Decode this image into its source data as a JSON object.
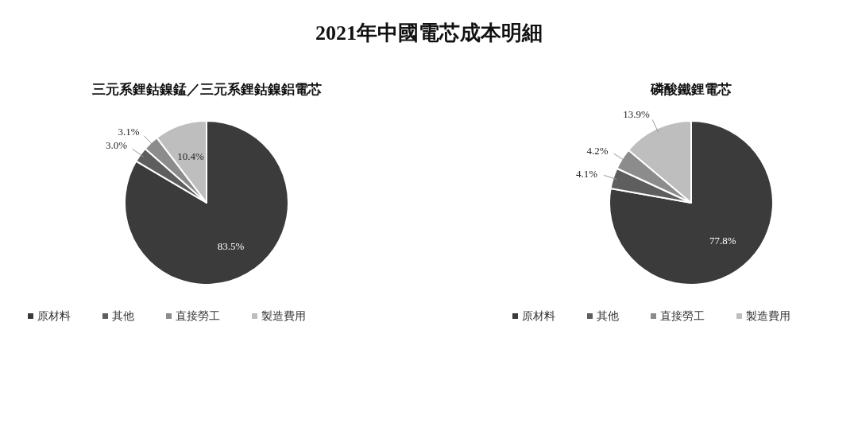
{
  "chart_data": [
    {
      "type": "pie",
      "title": "三元系鋰鈷鎳錳／三元系鋰鈷鎳鋁電芯",
      "annotations": [
        "2021年中國電芯成本明細"
      ],
      "categories": [
        "原材料",
        "其他",
        "直接勞工",
        "製造費用"
      ],
      "values": [
        83.5,
        3.0,
        3.1,
        10.4
      ],
      "value_labels": [
        "83.5%",
        "3.0%",
        "3.1%",
        "10.4%"
      ],
      "colors": [
        "#3b3b3b",
        "#5e5e5e",
        "#8c8c8c",
        "#bebebe"
      ],
      "legend": "bottom"
    },
    {
      "type": "pie",
      "title": "磷酸鐵鋰電芯",
      "categories": [
        "原材料",
        "其他",
        "直接勞工",
        "製造費用"
      ],
      "values": [
        77.8,
        4.1,
        4.2,
        13.9
      ],
      "value_labels": [
        "77.8%",
        "4.1%",
        "4.2%",
        "13.9%"
      ],
      "colors": [
        "#3b3b3b",
        "#5e5e5e",
        "#8c8c8c",
        "#bebebe"
      ],
      "legend": "bottom"
    }
  ]
}
